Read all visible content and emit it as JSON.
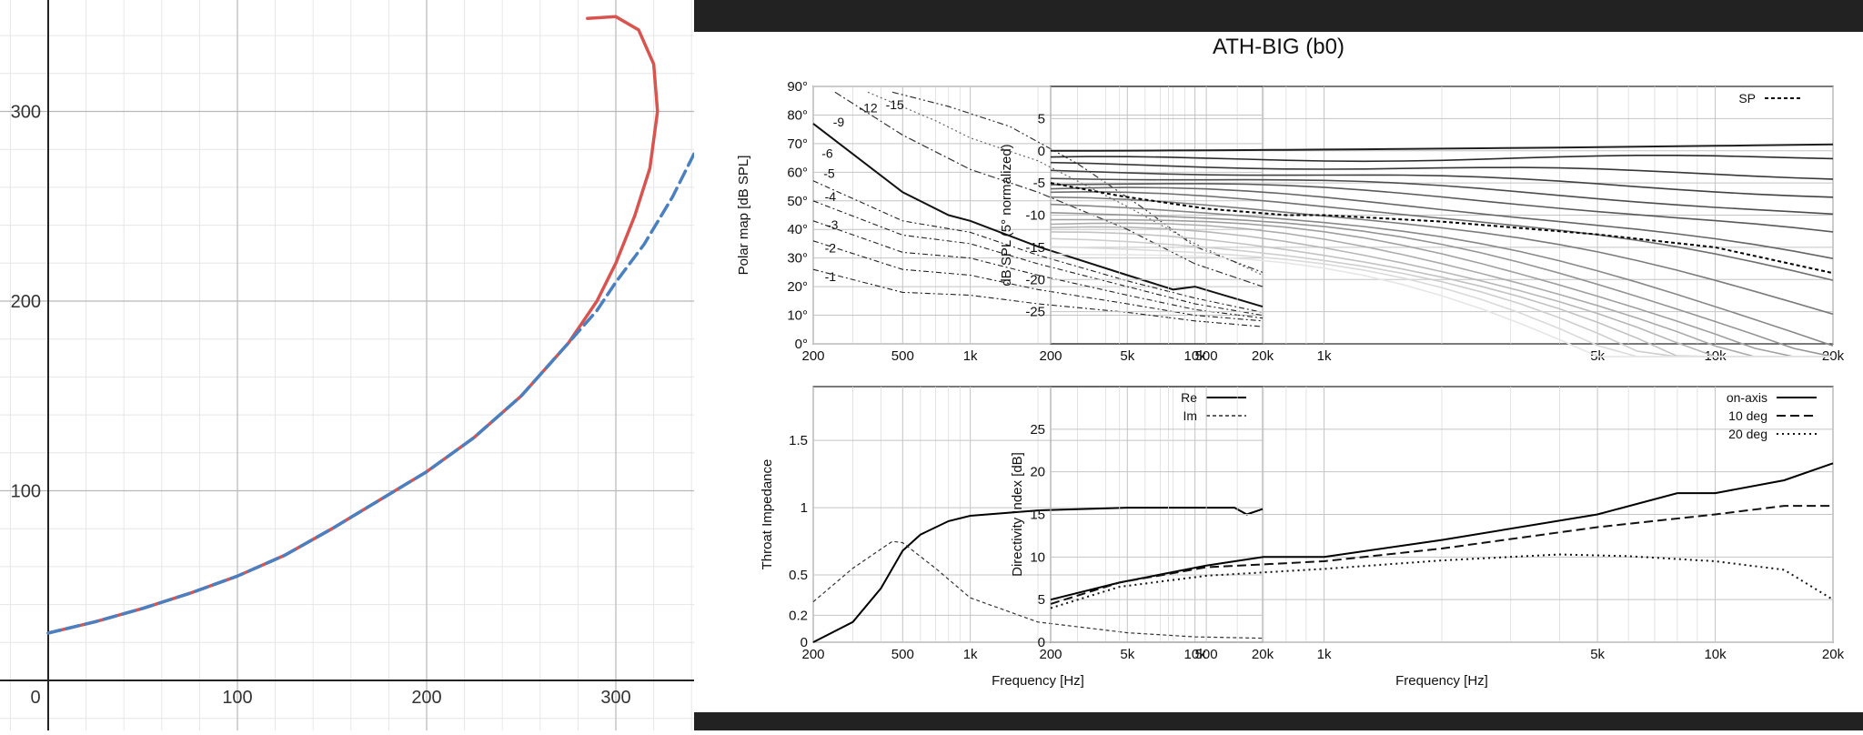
{
  "window": {
    "title": "ATH-BIG (b0)"
  },
  "colors": {
    "profile_curve": "#d9534f",
    "fit_curve": "#4a80c0",
    "dark_bar": "#222222"
  },
  "chart_data": [
    {
      "name": "profile-graph",
      "type": "line",
      "x_ticks": [
        "0",
        "100",
        "200",
        "300"
      ],
      "y_ticks": [
        "100",
        "200",
        "300"
      ],
      "xlim": [
        -25,
        340
      ],
      "ylim": [
        -25,
        360
      ],
      "series": [
        {
          "style": "solid",
          "color": "#d9534f",
          "points": [
            [
              0,
              25
            ],
            [
              25,
              31
            ],
            [
              50,
              38
            ],
            [
              75,
              46
            ],
            [
              100,
              55
            ],
            [
              125,
              66
            ],
            [
              150,
              80
            ],
            [
              175,
              95
            ],
            [
              200,
              110
            ],
            [
              225,
              128
            ],
            [
              250,
              150
            ],
            [
              275,
              178
            ],
            [
              290,
              200
            ],
            [
              300,
              220
            ],
            [
              310,
              245
            ],
            [
              318,
              270
            ],
            [
              322,
              300
            ],
            [
              320,
              325
            ],
            [
              312,
              343
            ],
            [
              300,
              350
            ],
            [
              285,
              349
            ]
          ]
        },
        {
          "style": "dashed",
          "color": "#4a80c0",
          "points": [
            [
              0,
              25
            ],
            [
              25,
              31
            ],
            [
              50,
              38
            ],
            [
              75,
              46
            ],
            [
              100,
              55
            ],
            [
              125,
              66
            ],
            [
              150,
              80
            ],
            [
              175,
              95
            ],
            [
              200,
              110
            ],
            [
              225,
              128
            ],
            [
              250,
              150
            ],
            [
              275,
              178
            ],
            [
              290,
              195
            ],
            [
              300,
              210
            ],
            [
              315,
              230
            ],
            [
              330,
              255
            ],
            [
              345,
              285
            ]
          ]
        }
      ]
    },
    {
      "name": "polar-map",
      "type": "line",
      "ylabel": "Polar map [dB SPL]",
      "x_ticks": [
        "200",
        "500",
        "1k",
        "5k",
        "10k",
        "20k"
      ],
      "y_ticks": [
        "0°",
        "10°",
        "20°",
        "30°",
        "40°",
        "50°",
        "60°",
        "70°",
        "80°",
        "90°"
      ],
      "xlim": [
        200,
        20000
      ],
      "ylim": [
        0,
        90
      ],
      "contour_labels": [
        "-1",
        "-2",
        "-3",
        "-4",
        "-5",
        "-6",
        "-9",
        "-12",
        "-15"
      ],
      "contours": [
        {
          "label": "-1",
          "points": [
            [
              200,
              26
            ],
            [
              500,
              18
            ],
            [
              1000,
              17
            ],
            [
              2000,
              14
            ],
            [
              5000,
              11
            ],
            [
              10000,
              8
            ],
            [
              20000,
              6
            ]
          ]
        },
        {
          "label": "-2",
          "points": [
            [
              200,
              36
            ],
            [
              500,
              26
            ],
            [
              1000,
              24
            ],
            [
              2000,
              19
            ],
            [
              5000,
              14
            ],
            [
              10000,
              10
            ],
            [
              20000,
              8
            ]
          ]
        },
        {
          "label": "-3",
          "points": [
            [
              200,
              43
            ],
            [
              500,
              32
            ],
            [
              1000,
              30
            ],
            [
              2000,
              24
            ],
            [
              5000,
              17
            ],
            [
              10000,
              12
            ],
            [
              20000,
              9
            ]
          ]
        },
        {
          "label": "-4",
          "points": [
            [
              200,
              50
            ],
            [
              500,
              38
            ],
            [
              1000,
              35
            ],
            [
              2000,
              28
            ],
            [
              5000,
              20
            ],
            [
              10000,
              14
            ],
            [
              20000,
              10
            ]
          ]
        },
        {
          "label": "-5",
          "points": [
            [
              200,
              57
            ],
            [
              500,
              43
            ],
            [
              1000,
              39
            ],
            [
              2000,
              31
            ],
            [
              5000,
              22
            ],
            [
              10000,
              16
            ],
            [
              20000,
              11
            ]
          ]
        },
        {
          "label": "-6",
          "points": [
            [
              200,
              77
            ],
            [
              500,
              53
            ],
            [
              800,
              45
            ],
            [
              1000,
              43
            ],
            [
              2000,
              34
            ],
            [
              5000,
              24
            ],
            [
              8000,
              19
            ],
            [
              10000,
              20
            ],
            [
              20000,
              13
            ]
          ]
        },
        {
          "label": "-9",
          "points": [
            [
              250,
              88
            ],
            [
              500,
              73
            ],
            [
              1000,
              61
            ],
            [
              2000,
              53
            ],
            [
              5000,
              40
            ],
            [
              10000,
              28
            ],
            [
              20000,
              20
            ]
          ]
        },
        {
          "label": "-12",
          "points": [
            [
              350,
              88
            ],
            [
              700,
              78
            ],
            [
              1000,
              72
            ],
            [
              2000,
              64
            ],
            [
              5000,
              48
            ],
            [
              10000,
              35
            ],
            [
              20000,
              24
            ]
          ]
        },
        {
          "label": "-15",
          "points": [
            [
              450,
              88
            ],
            [
              800,
              83
            ],
            [
              1500,
              76
            ],
            [
              3000,
              63
            ],
            [
              6000,
              47
            ],
            [
              10000,
              34
            ],
            [
              20000,
              25
            ]
          ]
        }
      ]
    },
    {
      "name": "spl-normalized",
      "type": "line",
      "ylabel": "dB SPL (5° normalized)",
      "x_ticks": [
        "200",
        "500",
        "1k",
        "5k",
        "10k",
        "20k"
      ],
      "y_ticks": [
        "5",
        "0",
        "-5",
        "-10",
        "-15",
        "-20",
        "-25"
      ],
      "xlim": [
        200,
        20000
      ],
      "ylim": [
        -30,
        10
      ],
      "legend": [
        "SP"
      ],
      "sound_power": [
        [
          200,
          -5
        ],
        [
          300,
          -7
        ],
        [
          500,
          -9
        ],
        [
          800,
          -10
        ],
        [
          1000,
          -10
        ],
        [
          2000,
          -11
        ],
        [
          5000,
          -13
        ],
        [
          10000,
          -15
        ],
        [
          20000,
          -19
        ]
      ],
      "fan_endpoints": [
        1,
        -1,
        -4,
        -7,
        -10,
        -13,
        -17,
        -20,
        -25,
        -30,
        -33,
        -36,
        -39,
        -42,
        -45,
        -48,
        -51,
        -54
      ]
    },
    {
      "name": "throat-impedance",
      "type": "line",
      "ylabel": "Throat Impedance",
      "xlabel": "Frequency [Hz]",
      "x_ticks": [
        "200",
        "500",
        "1k",
        "5k",
        "10k",
        "20k"
      ],
      "y_ticks": [
        "0",
        "0.2",
        "0.5",
        "1",
        "1.5"
      ],
      "xlim": [
        200,
        20000
      ],
      "ylim": [
        0,
        1.9
      ],
      "legend": [
        "Re",
        "Im"
      ],
      "series": [
        {
          "name": "Re",
          "points": [
            [
              200,
              0
            ],
            [
              300,
              0.15
            ],
            [
              400,
              0.4
            ],
            [
              500,
              0.68
            ],
            [
              600,
              0.8
            ],
            [
              800,
              0.9
            ],
            [
              1000,
              0.94
            ],
            [
              2000,
              0.98
            ],
            [
              5000,
              1.0
            ],
            [
              10000,
              1.0
            ],
            [
              15000,
              1.0
            ],
            [
              17000,
              0.95
            ],
            [
              20000,
              0.99
            ]
          ]
        },
        {
          "name": "Im",
          "points": [
            [
              200,
              0.3
            ],
            [
              300,
              0.55
            ],
            [
              450,
              0.75
            ],
            [
              500,
              0.74
            ],
            [
              700,
              0.55
            ],
            [
              1000,
              0.33
            ],
            [
              2000,
              0.15
            ],
            [
              5000,
              0.07
            ],
            [
              10000,
              0.04
            ],
            [
              20000,
              0.03
            ]
          ]
        }
      ]
    },
    {
      "name": "directivity-index",
      "type": "line",
      "ylabel": "Directivity Index [dB]",
      "xlabel": "Frequency [Hz]",
      "x_ticks": [
        "200",
        "500",
        "1k",
        "5k",
        "10k",
        "20k"
      ],
      "y_ticks": [
        "0",
        "5",
        "10",
        "15",
        "20",
        "25"
      ],
      "xlim": [
        200,
        20000
      ],
      "ylim": [
        0,
        30
      ],
      "legend": [
        "on-axis",
        "10 deg",
        "20 deg"
      ],
      "series": [
        {
          "name": "on-axis",
          "points": [
            [
              200,
              5
            ],
            [
              300,
              7
            ],
            [
              500,
              9
            ],
            [
              700,
              10
            ],
            [
              1000,
              10
            ],
            [
              2000,
              12
            ],
            [
              5000,
              15
            ],
            [
              8000,
              17.5
            ],
            [
              10000,
              17.5
            ],
            [
              15000,
              19
            ],
            [
              20000,
              21
            ]
          ]
        },
        {
          "name": "10 deg",
          "points": [
            [
              200,
              4.5
            ],
            [
              300,
              7
            ],
            [
              500,
              8.8
            ],
            [
              1000,
              9.5
            ],
            [
              2000,
              11
            ],
            [
              5000,
              13.5
            ],
            [
              10000,
              15
            ],
            [
              15000,
              16
            ],
            [
              20000,
              16
            ]
          ]
        },
        {
          "name": "20 deg",
          "points": [
            [
              200,
              4
            ],
            [
              300,
              6.5
            ],
            [
              500,
              7.8
            ],
            [
              1000,
              8.6
            ],
            [
              2000,
              9.6
            ],
            [
              4000,
              10.3
            ],
            [
              6000,
              10.1
            ],
            [
              10000,
              9.5
            ],
            [
              15000,
              8.5
            ],
            [
              20000,
              5
            ]
          ]
        }
      ]
    }
  ]
}
